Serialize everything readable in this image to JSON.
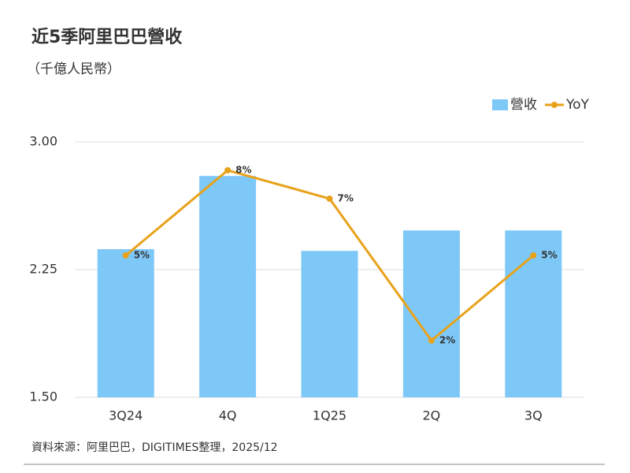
{
  "chart_data": {
    "type": "bar",
    "title": "近5季阿里巴巴營收",
    "subtitle": "（千億人民幣）",
    "source": "資料來源：阿里巴巴，DIGITIMES整理，2025/12",
    "categories": [
      "3Q24",
      "4Q",
      "1Q25",
      "2Q",
      "3Q"
    ],
    "series": [
      {
        "name": "營收",
        "type": "bar",
        "color": "#7ec8f8",
        "values": [
          2.37,
          2.8,
          2.36,
          2.48,
          2.48
        ]
      },
      {
        "name": "YoY",
        "type": "line",
        "axis": "y2",
        "color": "#e8a21a",
        "values": [
          5,
          8,
          7,
          2,
          5
        ],
        "value_labels": [
          "5%",
          "8%",
          "7%",
          "2%",
          "5%"
        ]
      }
    ],
    "ylim": [
      1.5,
      3.0
    ],
    "yticks": [
      {
        "value": 3.0,
        "label": "3.00"
      },
      {
        "value": 2.25,
        "label": "2.25"
      },
      {
        "value": 1.5,
        "label": "1.50"
      }
    ],
    "y2lim": [
      0,
      9
    ],
    "grid": true,
    "legend": "top-right"
  }
}
